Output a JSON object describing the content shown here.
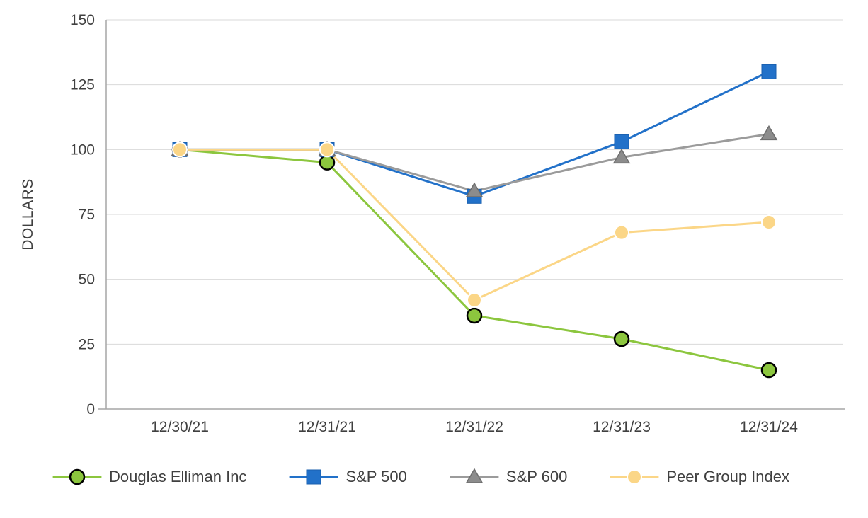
{
  "chart_data": {
    "type": "line",
    "title": "",
    "xlabel": "",
    "ylabel": "DOLLARS",
    "ylim": [
      0,
      150
    ],
    "yticks": [
      0,
      25,
      50,
      75,
      100,
      125,
      150
    ],
    "grid": true,
    "legend_position": "bottom",
    "axis_color": "#a6a6a6",
    "grid_color": "#d9d9d9",
    "text_color": "#404040",
    "categories": [
      "12/30/21",
      "12/31/21",
      "12/31/22",
      "12/31/23",
      "12/31/24"
    ],
    "series": [
      {
        "name": "Douglas Elliman Inc",
        "marker": "circle",
        "color": "#8cc63e",
        "marker_fill": "#8cc63e",
        "marker_stroke": "#000000",
        "marker_stroke_width": 2.5,
        "values": [
          100,
          95,
          36,
          27,
          15
        ]
      },
      {
        "name": "S&P 500",
        "marker": "square",
        "color": "#2271c9",
        "marker_fill": "#2271c9",
        "marker_stroke": "#1a5fae",
        "marker_stroke_width": 1,
        "values": [
          100,
          100,
          82,
          103,
          130
        ]
      },
      {
        "name": "S&P 600",
        "marker": "triangle",
        "color": "#9b9b9b",
        "marker_fill": "#8c8c8c",
        "marker_stroke": "#6e6e6e",
        "marker_stroke_width": 1.5,
        "values": [
          100,
          100,
          84,
          97,
          106
        ]
      },
      {
        "name": "Peer Group Index",
        "marker": "circle",
        "color": "#fbd687",
        "marker_fill": "#fbd687",
        "marker_stroke": "#ffffff",
        "marker_stroke_width": 2,
        "values": [
          100,
          100,
          42,
          68,
          72
        ]
      }
    ]
  }
}
